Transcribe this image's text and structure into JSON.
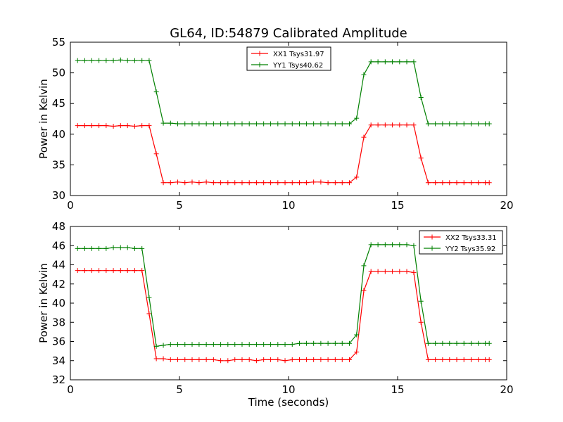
{
  "title": "GL64, ID:54879 Calibrated Amplitude",
  "chart_data": [
    {
      "type": "line",
      "title": "GL64, ID:54879 Calibrated Amplitude",
      "xlabel": "",
      "ylabel": "Power in Kelvin",
      "xlim": [
        0,
        20
      ],
      "ylim": [
        30,
        55
      ],
      "xticks": [
        "0",
        "5",
        "10",
        "15",
        "20"
      ],
      "yticks": [
        "30",
        "35",
        "40",
        "45",
        "50",
        "55"
      ],
      "grid": false,
      "legend_position": "top-center",
      "x": [
        0.33,
        0.66,
        0.98,
        1.31,
        1.64,
        1.97,
        2.3,
        2.62,
        2.95,
        3.28,
        3.61,
        3.94,
        4.26,
        4.59,
        4.92,
        5.25,
        5.58,
        5.9,
        6.23,
        6.56,
        6.89,
        7.22,
        7.54,
        7.87,
        8.2,
        8.53,
        8.86,
        9.18,
        9.51,
        9.84,
        10.17,
        10.5,
        10.82,
        11.15,
        11.48,
        11.81,
        12.14,
        12.46,
        12.79,
        13.12,
        13.45,
        13.78,
        14.1,
        14.43,
        14.76,
        15.09,
        15.42,
        15.74,
        16.07,
        16.4,
        16.73,
        17.06,
        17.38,
        17.71,
        18.04,
        18.37,
        18.7,
        19.02,
        19.2
      ],
      "series": [
        {
          "name": "XX1 Tsys31.97",
          "color": "#ff0000",
          "values": [
            41.4,
            41.4,
            41.4,
            41.4,
            41.4,
            41.3,
            41.4,
            41.4,
            41.3,
            41.4,
            41.4,
            36.8,
            32.1,
            32.1,
            32.2,
            32.1,
            32.2,
            32.1,
            32.2,
            32.1,
            32.1,
            32.1,
            32.1,
            32.1,
            32.1,
            32.1,
            32.1,
            32.1,
            32.1,
            32.1,
            32.1,
            32.1,
            32.1,
            32.2,
            32.2,
            32.1,
            32.1,
            32.1,
            32.1,
            33.0,
            39.5,
            41.5,
            41.5,
            41.5,
            41.5,
            41.5,
            41.5,
            41.5,
            36.1,
            32.1,
            32.1,
            32.1,
            32.1,
            32.1,
            32.1,
            32.1,
            32.1,
            32.1,
            32.1
          ]
        },
        {
          "name": "YY1 Tsys40.62",
          "color": "#008000",
          "values": [
            52.0,
            52.0,
            52.0,
            52.0,
            52.0,
            52.0,
            52.1,
            52.0,
            52.0,
            52.0,
            52.0,
            46.9,
            41.8,
            41.8,
            41.7,
            41.7,
            41.7,
            41.7,
            41.7,
            41.7,
            41.7,
            41.7,
            41.7,
            41.7,
            41.7,
            41.7,
            41.7,
            41.7,
            41.7,
            41.7,
            41.7,
            41.7,
            41.7,
            41.7,
            41.7,
            41.7,
            41.7,
            41.7,
            41.7,
            42.6,
            49.7,
            51.8,
            51.8,
            51.8,
            51.8,
            51.8,
            51.8,
            51.8,
            46.0,
            41.7,
            41.7,
            41.7,
            41.7,
            41.7,
            41.7,
            41.7,
            41.7,
            41.7,
            41.7
          ]
        }
      ]
    },
    {
      "type": "line",
      "title": "",
      "xlabel": "Time (seconds)",
      "ylabel": "Power in Kelvin",
      "xlim": [
        0,
        20
      ],
      "ylim": [
        32,
        48
      ],
      "xticks": [
        "0",
        "5",
        "10",
        "15",
        "20"
      ],
      "yticks": [
        "32",
        "34",
        "36",
        "38",
        "40",
        "42",
        "44",
        "46",
        "48"
      ],
      "grid": false,
      "legend_position": "top-right",
      "x": [
        0.33,
        0.66,
        0.98,
        1.31,
        1.64,
        1.97,
        2.3,
        2.62,
        2.95,
        3.28,
        3.61,
        3.94,
        4.26,
        4.59,
        4.92,
        5.25,
        5.58,
        5.9,
        6.23,
        6.56,
        6.89,
        7.22,
        7.54,
        7.87,
        8.2,
        8.53,
        8.86,
        9.18,
        9.51,
        9.84,
        10.17,
        10.5,
        10.82,
        11.15,
        11.48,
        11.81,
        12.14,
        12.46,
        12.79,
        13.12,
        13.45,
        13.78,
        14.1,
        14.43,
        14.76,
        15.09,
        15.42,
        15.74,
        16.07,
        16.4,
        16.73,
        17.06,
        17.38,
        17.71,
        18.04,
        18.37,
        18.7,
        19.02,
        19.2
      ],
      "series": [
        {
          "name": "XX2 Tsys33.31",
          "color": "#ff0000",
          "values": [
            43.4,
            43.4,
            43.4,
            43.4,
            43.4,
            43.4,
            43.4,
            43.4,
            43.4,
            43.4,
            38.9,
            34.2,
            34.2,
            34.1,
            34.1,
            34.1,
            34.1,
            34.1,
            34.1,
            34.1,
            34.0,
            34.0,
            34.1,
            34.1,
            34.1,
            34.0,
            34.1,
            34.1,
            34.1,
            34.0,
            34.1,
            34.1,
            34.1,
            34.1,
            34.1,
            34.1,
            34.1,
            34.1,
            34.1,
            34.9,
            41.3,
            43.3,
            43.3,
            43.3,
            43.3,
            43.3,
            43.3,
            43.2,
            38.0,
            34.1,
            34.1,
            34.1,
            34.1,
            34.1,
            34.1,
            34.1,
            34.1,
            34.1,
            34.1
          ]
        },
        {
          "name": "YY2 Tsys35.92",
          "color": "#008000",
          "values": [
            45.7,
            45.7,
            45.7,
            45.7,
            45.7,
            45.8,
            45.8,
            45.8,
            45.7,
            45.7,
            40.6,
            35.5,
            35.6,
            35.7,
            35.7,
            35.7,
            35.7,
            35.7,
            35.7,
            35.7,
            35.7,
            35.7,
            35.7,
            35.7,
            35.7,
            35.7,
            35.7,
            35.7,
            35.7,
            35.7,
            35.7,
            35.8,
            35.8,
            35.8,
            35.8,
            35.8,
            35.8,
            35.8,
            35.8,
            36.7,
            43.9,
            46.1,
            46.1,
            46.1,
            46.1,
            46.1,
            46.1,
            46.0,
            40.2,
            35.8,
            35.8,
            35.8,
            35.8,
            35.8,
            35.8,
            35.8,
            35.8,
            35.8,
            35.8
          ]
        }
      ]
    }
  ]
}
